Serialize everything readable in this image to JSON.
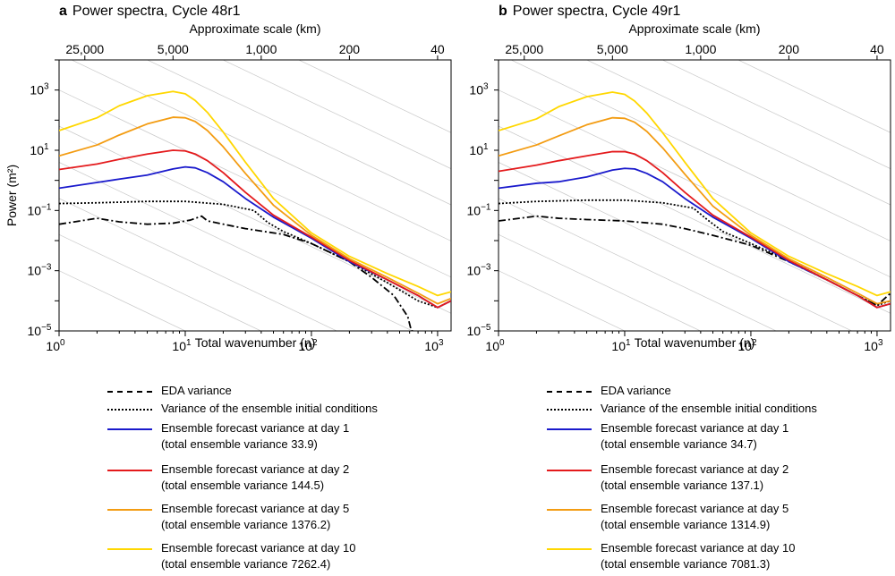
{
  "chart_data": [
    {
      "type": "line",
      "panel_label": "a",
      "title": "Power spectra, Cycle 48r1",
      "xlabel": "Total wavenumber (n)",
      "ylabel": "Power (m²)",
      "top_axis_label": "Approximate scale (km)",
      "xscale": "log",
      "yscale": "log",
      "xlim": [
        1,
        1279
      ],
      "ylim": [
        1e-05,
        10000
      ],
      "x_ticks": [
        {
          "value": 1,
          "base": "10",
          "exp": "0"
        },
        {
          "value": 10,
          "base": "10",
          "exp": "1"
        },
        {
          "value": 100,
          "base": "10",
          "exp": "2"
        },
        {
          "value": 1000,
          "base": "10",
          "exp": "3"
        }
      ],
      "y_ticks": [
        {
          "value": 1e-05,
          "base": "10",
          "exp": "−5"
        },
        {
          "value": 0.001,
          "base": "10",
          "exp": "−3"
        },
        {
          "value": 0.1,
          "base": "10",
          "exp": "−1"
        },
        {
          "value": 10,
          "base": "10",
          "exp": "1"
        },
        {
          "value": 1000,
          "base": "10",
          "exp": "3"
        }
      ],
      "top_ticks": [
        {
          "label": "25,000",
          "n": 1.6
        },
        {
          "label": "5,000",
          "n": 8
        },
        {
          "label": "1,000",
          "n": 40
        },
        {
          "label": "200",
          "n": 200
        },
        {
          "label": "40",
          "n": 1000
        }
      ],
      "series": [
        {
          "name": "EDA variance",
          "color": "#000000",
          "dash": "8,3,2,3",
          "x": [
            1,
            2,
            3,
            5,
            8,
            11,
            13.5,
            15,
            20,
            30,
            60,
            100,
            200,
            300,
            450,
            580,
            620,
            650
          ],
          "y": [
            0.035,
            0.055,
            0.042,
            0.035,
            0.038,
            0.048,
            0.065,
            0.045,
            0.035,
            0.025,
            0.016,
            0.008,
            0.002,
            0.0006,
            0.00015,
            3e-05,
            1e-05,
            1e-05
          ]
        },
        {
          "name": "Variance of the ensemble initial conditions",
          "color": "#000000",
          "dash": "2,2",
          "x": [
            1,
            2,
            5,
            10,
            20,
            35,
            45,
            60,
            100,
            200,
            400,
            700,
            1000,
            1279
          ],
          "y": [
            0.17,
            0.18,
            0.2,
            0.2,
            0.16,
            0.1,
            0.04,
            0.02,
            0.008,
            0.002,
            0.0004,
            0.0001,
            6e-05,
            0.0001
          ]
        },
        {
          "name": "Ensemble forecast variance at day 1",
          "sublabel": "(total ensemble variance 33.9)",
          "color": "#1a1acc",
          "x": [
            1,
            2,
            3,
            5,
            8,
            10,
            12,
            15,
            20,
            30,
            50,
            100,
            200,
            400,
            700,
            1000,
            1279
          ],
          "y": [
            0.55,
            0.85,
            1.1,
            1.5,
            2.4,
            2.8,
            2.6,
            1.8,
            0.9,
            0.25,
            0.06,
            0.012,
            0.002,
            0.0005,
            0.00015,
            6e-05,
            0.0001
          ]
        },
        {
          "name": "Ensemble forecast variance at day 2",
          "sublabel": "(total ensemble variance 144.5)",
          "color": "#e41a1c",
          "x": [
            1,
            2,
            3,
            5,
            8,
            10,
            12,
            15,
            20,
            30,
            50,
            100,
            200,
            400,
            700,
            1000,
            1279
          ],
          "y": [
            2.3,
            3.5,
            5,
            7.5,
            10,
            9.5,
            7.5,
            4.5,
            1.8,
            0.4,
            0.07,
            0.013,
            0.0022,
            0.0005,
            0.00015,
            6e-05,
            0.0001
          ]
        },
        {
          "name": "Ensemble forecast variance at day 5",
          "sublabel": "(total ensemble variance 1376.2)",
          "color": "#f39c12",
          "x": [
            1,
            2,
            3,
            5,
            8,
            10,
            12,
            15,
            20,
            30,
            50,
            100,
            200,
            400,
            700,
            1000,
            1279
          ],
          "y": [
            6.5,
            15,
            32,
            75,
            125,
            120,
            90,
            45,
            13,
            1.7,
            0.15,
            0.015,
            0.0025,
            0.0006,
            0.00018,
            8e-05,
            0.00012
          ]
        },
        {
          "name": "Ensemble forecast variance at day 10",
          "sublabel": "(total ensemble variance 7262.4)",
          "color": "#ffd700",
          "x": [
            1,
            2,
            3,
            5,
            8,
            10,
            12,
            15,
            20,
            30,
            50,
            100,
            200,
            400,
            700,
            1000,
            1279
          ],
          "y": [
            45,
            120,
            300,
            650,
            900,
            750,
            450,
            180,
            40,
            4,
            0.25,
            0.018,
            0.003,
            0.0008,
            0.0003,
            0.00015,
            0.0002
          ]
        }
      ]
    },
    {
      "type": "line",
      "panel_label": "b",
      "title": "Power spectra, Cycle 49r1",
      "xlabel": "Total wavenumber (n)",
      "ylabel": "",
      "top_axis_label": "Approximate scale (km)",
      "xscale": "log",
      "yscale": "log",
      "xlim": [
        1,
        1279
      ],
      "ylim": [
        1e-05,
        10000
      ],
      "x_ticks": [
        {
          "value": 1,
          "base": "10",
          "exp": "0"
        },
        {
          "value": 10,
          "base": "10",
          "exp": "1"
        },
        {
          "value": 100,
          "base": "10",
          "exp": "2"
        },
        {
          "value": 1000,
          "base": "10",
          "exp": "3"
        }
      ],
      "y_ticks": [
        {
          "value": 1e-05,
          "base": "10",
          "exp": "−5"
        },
        {
          "value": 0.001,
          "base": "10",
          "exp": "−3"
        },
        {
          "value": 0.1,
          "base": "10",
          "exp": "−1"
        },
        {
          "value": 10,
          "base": "10",
          "exp": "1"
        },
        {
          "value": 1000,
          "base": "10",
          "exp": "3"
        }
      ],
      "top_ticks": [
        {
          "label": "25,000",
          "n": 1.6
        },
        {
          "label": "5,000",
          "n": 8
        },
        {
          "label": "1,000",
          "n": 40
        },
        {
          "label": "200",
          "n": 200
        },
        {
          "label": "40",
          "n": 1000
        }
      ],
      "series": [
        {
          "name": "EDA variance",
          "color": "#000000",
          "dash": "8,3,2,3",
          "x": [
            1,
            2,
            3,
            5,
            10,
            20,
            30,
            50,
            100,
            200,
            400,
            700,
            1000,
            1279
          ],
          "y": [
            0.045,
            0.065,
            0.055,
            0.05,
            0.045,
            0.035,
            0.025,
            0.015,
            0.007,
            0.002,
            0.0005,
            0.00015,
            7e-05,
            0.00018
          ]
        },
        {
          "name": "Variance of the ensemble initial conditions",
          "color": "#000000",
          "dash": "2,2",
          "x": [
            1,
            2,
            5,
            10,
            20,
            35,
            45,
            60,
            100,
            200,
            400,
            700,
            1000,
            1279
          ],
          "y": [
            0.17,
            0.2,
            0.22,
            0.22,
            0.18,
            0.12,
            0.05,
            0.02,
            0.008,
            0.0022,
            0.0005,
            0.00015,
            7e-05,
            0.0001
          ]
        },
        {
          "name": "Ensemble forecast variance at day 1",
          "sublabel": "(total ensemble variance 34.7)",
          "color": "#1a1acc",
          "x": [
            1,
            2,
            3,
            5,
            8,
            10,
            12,
            15,
            20,
            30,
            50,
            100,
            200,
            400,
            700,
            1000,
            1279
          ],
          "y": [
            0.55,
            0.8,
            0.9,
            1.3,
            2.2,
            2.5,
            2.4,
            1.7,
            0.9,
            0.25,
            0.06,
            0.012,
            0.002,
            0.0005,
            0.00015,
            6e-05,
            8e-05
          ]
        },
        {
          "name": "Ensemble forecast variance at day 2",
          "sublabel": "(total ensemble variance 137.1)",
          "color": "#e41a1c",
          "x": [
            1,
            2,
            3,
            5,
            8,
            10,
            12,
            15,
            20,
            30,
            50,
            100,
            200,
            400,
            700,
            1000,
            1279
          ],
          "y": [
            2.0,
            3.2,
            4.5,
            6.5,
            9,
            9,
            7.5,
            4.5,
            1.8,
            0.4,
            0.07,
            0.013,
            0.0022,
            0.0005,
            0.00015,
            6e-05,
            8e-05
          ]
        },
        {
          "name": "Ensemble forecast variance at day 5",
          "sublabel": "(total ensemble variance 1314.9)",
          "color": "#f39c12",
          "x": [
            1,
            2,
            3,
            5,
            8,
            10,
            12,
            15,
            20,
            30,
            50,
            100,
            200,
            400,
            700,
            1000,
            1279
          ],
          "y": [
            6.5,
            15,
            30,
            70,
            120,
            115,
            85,
            42,
            12,
            1.6,
            0.14,
            0.015,
            0.0025,
            0.0006,
            0.00018,
            8e-05,
            0.0001
          ]
        },
        {
          "name": "Ensemble forecast variance at day 10",
          "sublabel": "(total ensemble variance 7081.3)",
          "color": "#ffd700",
          "x": [
            1,
            2,
            3,
            5,
            8,
            10,
            12,
            15,
            20,
            30,
            50,
            100,
            200,
            400,
            700,
            1000,
            1279
          ],
          "y": [
            45,
            110,
            280,
            600,
            850,
            720,
            430,
            170,
            38,
            4,
            0.25,
            0.018,
            0.003,
            0.0008,
            0.0003,
            0.00015,
            0.0002
          ]
        }
      ]
    }
  ]
}
